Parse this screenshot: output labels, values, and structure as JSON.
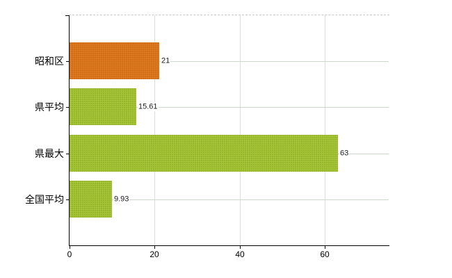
{
  "chart_data": {
    "type": "bar",
    "orientation": "horizontal",
    "categories": [
      "昭和区",
      "県平均",
      "県最大",
      "全国平均"
    ],
    "values": [
      21,
      15.61,
      63,
      9.93
    ],
    "value_labels": [
      "21",
      "15.61",
      "63",
      "9.93"
    ],
    "bar_colors": [
      "#e0781e",
      "#a5c736",
      "#a5c736",
      "#a5c736"
    ],
    "x_ticks": [
      0,
      20,
      40,
      60
    ],
    "x_tick_labels": [
      "0",
      "20",
      "40",
      "60"
    ],
    "xlim": [
      0,
      75
    ],
    "grid": {
      "vertical": true,
      "horizontal": true,
      "top_border": "dashed"
    },
    "legend": "none"
  },
  "colors": {
    "bar_orange": "#e0781e",
    "bar_green": "#a5c736",
    "axis": "#000000",
    "vertical_gridline": "#dcdcdc",
    "horizontal_gridline": "#cdd8cd",
    "top_border": "#c9c9c9",
    "value_text": "#1c1c1c",
    "tick_text": "#000000",
    "background": "#ffffff"
  }
}
